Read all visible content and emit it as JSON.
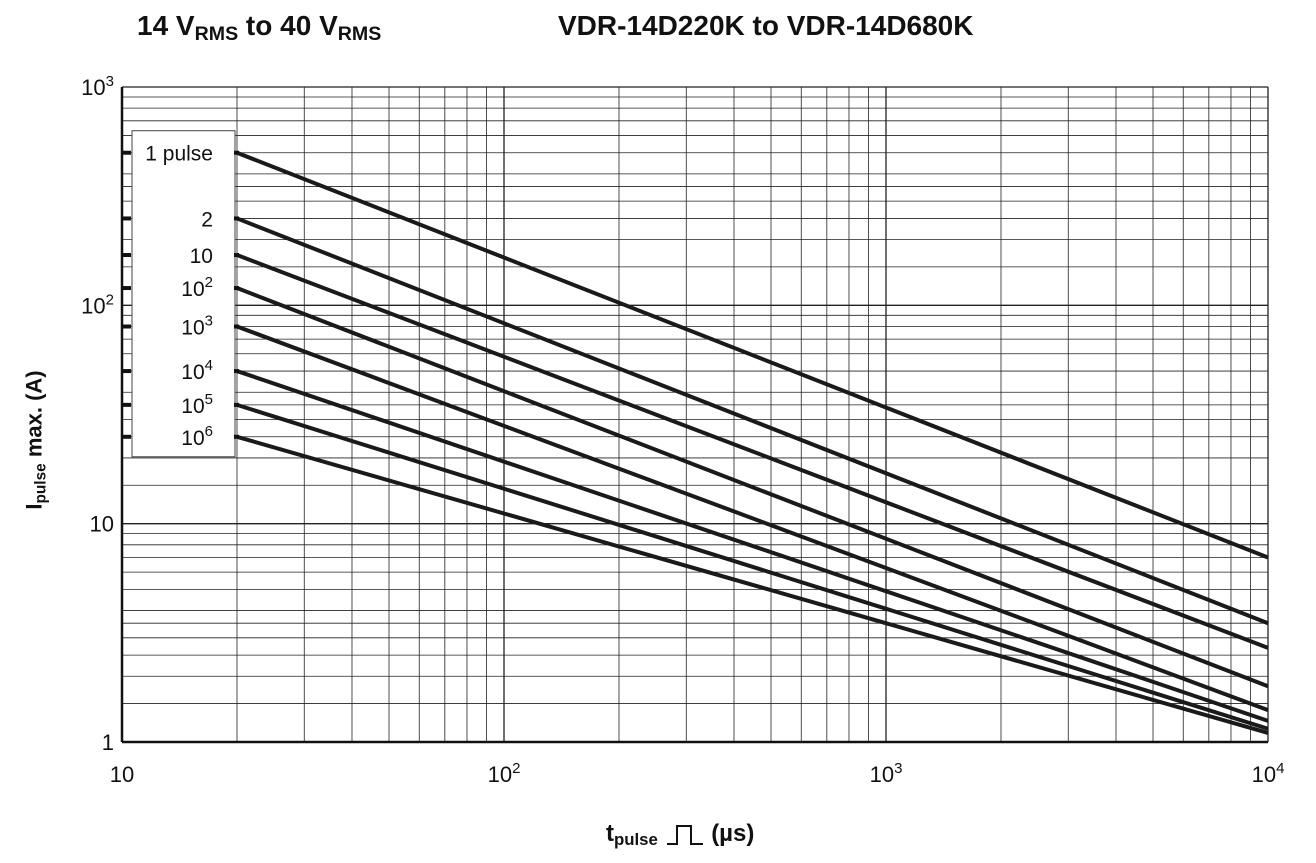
{
  "header": {
    "left_prefix": "14 V",
    "left_sub1": "RMS",
    "left_mid": " to 40 V",
    "left_sub2": "RMS",
    "right": "VDR-14D220K to VDR-14D680K"
  },
  "chart_data": {
    "type": "line",
    "xscale": "log",
    "yscale": "log",
    "xlim": [
      10,
      10000
    ],
    "ylim": [
      1,
      1000
    ],
    "x_ticks": [
      {
        "value": 10,
        "base": "10",
        "exp": ""
      },
      {
        "value": 100,
        "base": "10",
        "exp": "2"
      },
      {
        "value": 1000,
        "base": "10",
        "exp": "3"
      },
      {
        "value": 10000,
        "base": "10",
        "exp": "4"
      }
    ],
    "y_ticks": [
      {
        "value": 1,
        "base": "1",
        "exp": ""
      },
      {
        "value": 10,
        "base": "10",
        "exp": ""
      },
      {
        "value": 100,
        "base": "10",
        "exp": "2"
      },
      {
        "value": 1000,
        "base": "10",
        "exp": "3"
      }
    ],
    "xlabel_main": "t",
    "xlabel_sub": "pulse",
    "xlabel_unit": "(µs)",
    "ylabel_main": "I",
    "ylabel_sub": "pulse",
    "ylabel_rest": " max. (A)",
    "grid": true,
    "legend_placement": "left",
    "series": [
      {
        "label_base": "1 pulse",
        "label_exp": "",
        "x": [
          20,
          10000
        ],
        "y": [
          500,
          7
        ]
      },
      {
        "label_base": "2",
        "label_exp": "",
        "x": [
          20,
          10000
        ],
        "y": [
          250,
          3.5
        ]
      },
      {
        "label_base": "10",
        "label_exp": "",
        "x": [
          20,
          10000
        ],
        "y": [
          170,
          2.7
        ]
      },
      {
        "label_base": "10",
        "label_exp": "2",
        "x": [
          20,
          10000
        ],
        "y": [
          120,
          1.8
        ]
      },
      {
        "label_base": "10",
        "label_exp": "3",
        "x": [
          20,
          10000
        ],
        "y": [
          80,
          1.4
        ]
      },
      {
        "label_base": "10",
        "label_exp": "4",
        "x": [
          20,
          10000
        ],
        "y": [
          50,
          1.25
        ]
      },
      {
        "label_base": "10",
        "label_exp": "5",
        "x": [
          20,
          10000
        ],
        "y": [
          35,
          1.15
        ]
      },
      {
        "label_base": "10",
        "label_exp": "6",
        "x": [
          20,
          10000
        ],
        "y": [
          25,
          1.1
        ]
      }
    ]
  }
}
